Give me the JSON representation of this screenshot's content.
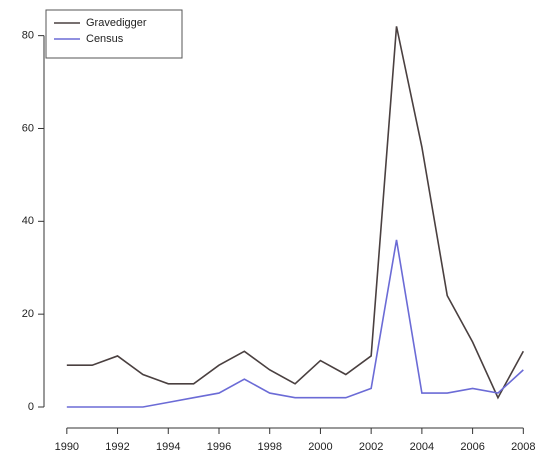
{
  "chart_data": {
    "type": "line",
    "x": [
      1990,
      1991,
      1992,
      1993,
      1994,
      1995,
      1996,
      1997,
      1998,
      1999,
      2000,
      2001,
      2002,
      2003,
      2004,
      2005,
      2006,
      2007,
      2008
    ],
    "series": [
      {
        "name": "Gravedigger",
        "color": "#4a4040",
        "values": [
          9,
          9,
          11,
          7,
          5,
          5,
          9,
          12,
          8,
          5,
          10,
          7,
          11,
          82,
          56,
          24,
          14,
          2,
          12
        ]
      },
      {
        "name": "Census",
        "color": "#6b6bd6",
        "values": [
          0,
          0,
          0,
          0,
          1,
          2,
          3,
          6,
          3,
          2,
          2,
          2,
          4,
          36,
          3,
          3,
          4,
          3,
          8
        ]
      }
    ],
    "xlim": [
      1989.1,
      2008.5
    ],
    "ylim": [
      -2.8,
      86.6
    ],
    "xticks": [
      1990,
      1992,
      1994,
      1996,
      1998,
      2000,
      2002,
      2004,
      2006,
      2008
    ],
    "yticks": [
      0,
      20,
      40,
      60,
      80
    ],
    "legend": "top-left"
  }
}
